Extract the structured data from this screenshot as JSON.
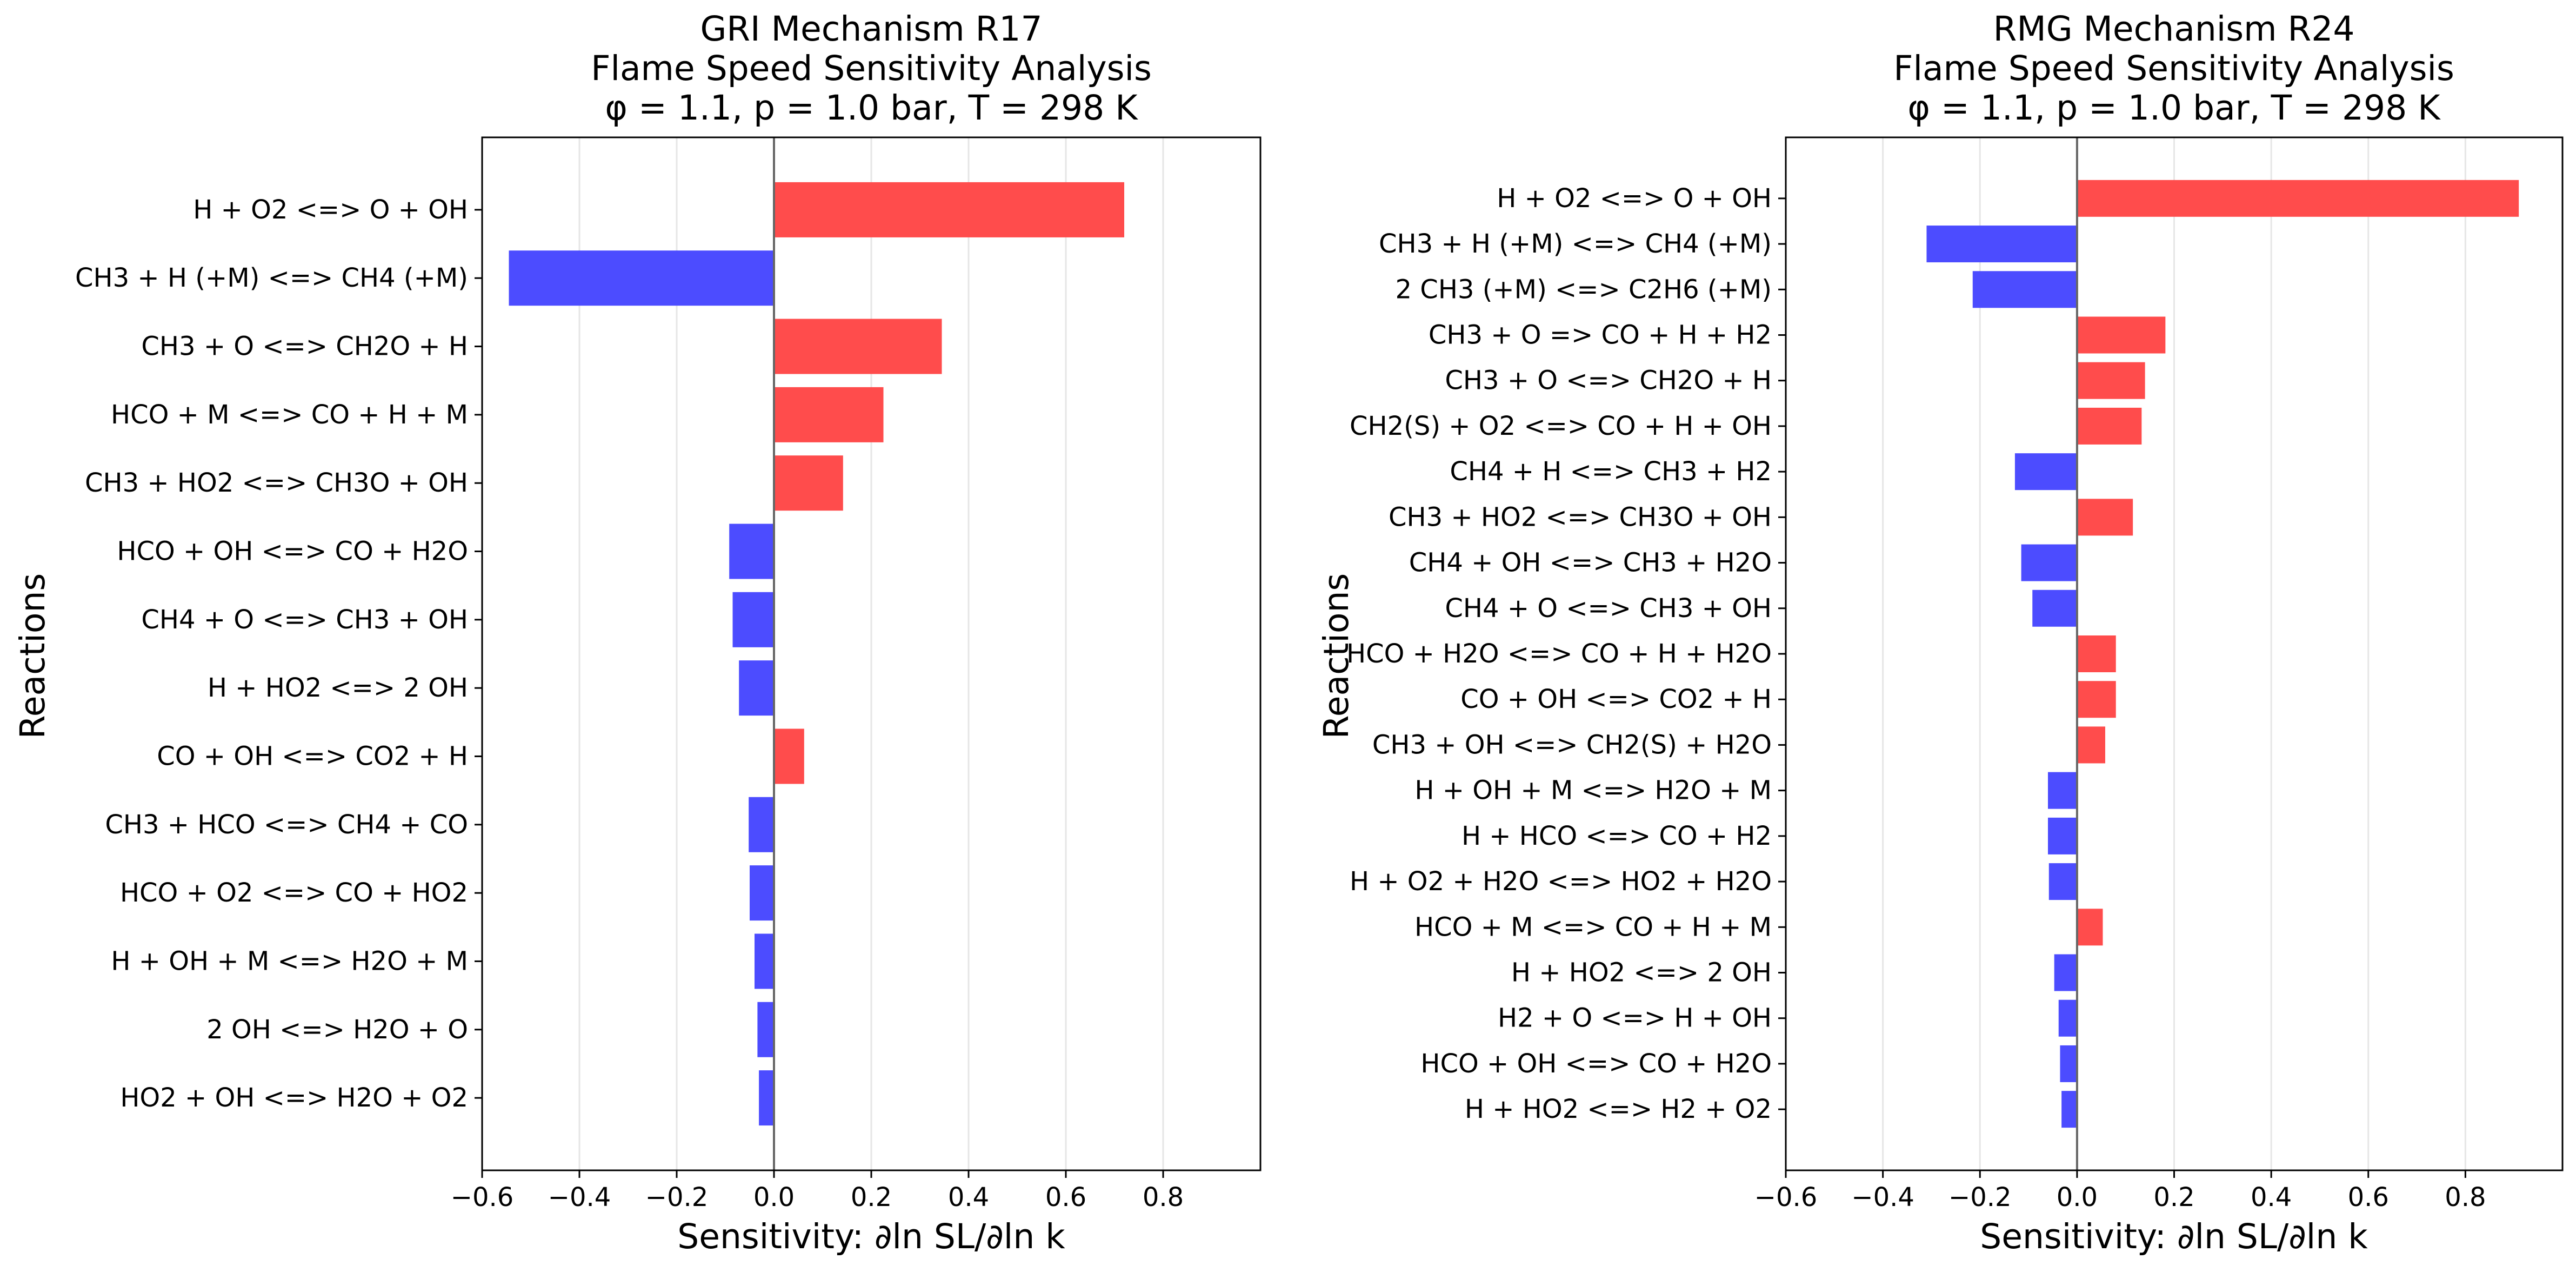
{
  "chart_data": [
    {
      "type": "bar",
      "orientation": "horizontal",
      "title_lines": [
        "GRI Mechanism R17",
        "Flame Speed Sensitivity Analysis",
        "φ = 1.1, p = 1.0 bar, T = 298 K"
      ],
      "xlabel": "Sensitivity: ∂ln SL/∂ln k",
      "ylabel": "Reactions",
      "xlim": [
        -0.6,
        1.0
      ],
      "xticks": [
        -0.6,
        -0.4,
        -0.2,
        0.0,
        0.2,
        0.4,
        0.6,
        0.8
      ],
      "xtick_labels": [
        "−0.6",
        "−0.4",
        "−0.2",
        "0.0",
        "0.2",
        "0.4",
        "0.6",
        "0.8"
      ],
      "grid": "vertical",
      "colors": {
        "positive": "#ff4c4c",
        "negative": "#4c4cff",
        "zero_line": "#666666"
      },
      "categories": [
        "H + O2 <=> O + OH",
        "CH3 + H (+M) <=> CH4 (+M)",
        "CH3 + O <=> CH2O + H",
        "HCO + M <=> CO + H + M",
        "CH3 + HO2 <=> CH3O + OH",
        "HCO + OH <=> CO + H2O",
        "CH4 + O <=> CH3 + OH",
        "H + HO2 <=> 2 OH",
        "CO + OH <=> CO2 + H",
        "CH3 + HCO <=> CH4 + CO",
        "HCO + O2 <=> CO + HO2",
        "H + OH + M <=> H2O + M",
        "2 OH <=> H2O + O",
        "HO2 + OH <=> H2O + O2"
      ],
      "values": [
        0.72,
        -0.545,
        0.345,
        0.225,
        0.142,
        -0.092,
        -0.085,
        -0.072,
        0.062,
        -0.052,
        -0.05,
        -0.04,
        -0.034,
        -0.031
      ]
    },
    {
      "type": "bar",
      "orientation": "horizontal",
      "title_lines": [
        "RMG Mechanism R24",
        "Flame Speed Sensitivity Analysis",
        "φ = 1.1, p = 1.0 bar, T = 298 K"
      ],
      "xlabel": "Sensitivity: ∂ln SL/∂ln k",
      "ylabel": "Reactions",
      "xlim": [
        -0.6,
        1.0
      ],
      "xticks": [
        -0.6,
        -0.4,
        -0.2,
        0.0,
        0.2,
        0.4,
        0.6,
        0.8
      ],
      "xtick_labels": [
        "−0.6",
        "−0.4",
        "−0.2",
        "0.0",
        "0.2",
        "0.4",
        "0.6",
        "0.8"
      ],
      "grid": "vertical",
      "colors": {
        "positive": "#ff4c4c",
        "negative": "#4c4cff",
        "zero_line": "#666666"
      },
      "categories": [
        "H + O2 <=> O + OH",
        "CH3 + H (+M) <=> CH4 (+M)",
        "2 CH3 (+M) <=> C2H6 (+M)",
        "CH3 + O => CO + H + H2",
        "CH3 + O <=> CH2O + H",
        "CH2(S) + O2 <=> CO + H + OH",
        "CH4 + H <=> CH3 + H2",
        "CH3 + HO2 <=> CH3O + OH",
        "CH4 + OH <=> CH3 + H2O",
        "CH4 + O <=> CH3 + OH",
        "HCO + H2O <=> CO + H + H2O",
        "CO + OH <=> CO2 + H",
        "CH3 + OH <=> CH2(S) + H2O",
        "H + OH + M <=> H2O + M",
        "H + HCO <=> CO + H2",
        "H + O2 + H2O <=> HO2 + H2O",
        "HCO + M <=> CO + H + M",
        "H + HO2 <=> 2 OH",
        "H2 + O <=> H + OH",
        "HCO + OH <=> CO + H2O",
        "H + HO2 <=> H2 + O2"
      ],
      "values": [
        0.91,
        -0.31,
        -0.215,
        0.182,
        0.14,
        0.133,
        -0.128,
        0.115,
        -0.115,
        -0.092,
        0.08,
        0.08,
        0.058,
        -0.06,
        -0.06,
        -0.058,
        0.053,
        -0.047,
        -0.038,
        -0.035,
        -0.032
      ]
    }
  ]
}
